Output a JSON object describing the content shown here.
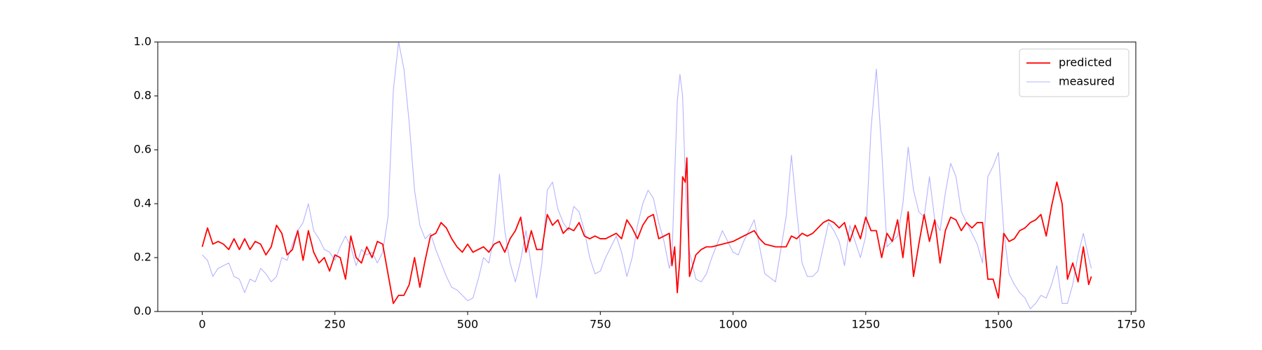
{
  "chart_data": {
    "type": "line",
    "x": [
      0,
      10,
      20,
      30,
      40,
      50,
      60,
      70,
      80,
      90,
      100,
      110,
      120,
      130,
      140,
      150,
      160,
      170,
      180,
      190,
      200,
      210,
      220,
      230,
      240,
      250,
      260,
      270,
      280,
      290,
      300,
      310,
      320,
      330,
      340,
      350,
      360,
      370,
      380,
      390,
      400,
      410,
      420,
      430,
      440,
      450,
      460,
      470,
      480,
      490,
      500,
      510,
      520,
      530,
      540,
      550,
      560,
      570,
      580,
      590,
      600,
      610,
      620,
      630,
      640,
      650,
      660,
      670,
      680,
      690,
      700,
      710,
      720,
      730,
      740,
      750,
      760,
      770,
      780,
      790,
      800,
      810,
      820,
      830,
      840,
      850,
      860,
      870,
      880,
      885,
      890,
      895,
      900,
      905,
      910,
      913,
      918,
      930,
      940,
      950,
      960,
      980,
      1000,
      1010,
      1020,
      1040,
      1050,
      1060,
      1080,
      1100,
      1110,
      1120,
      1130,
      1140,
      1150,
      1160,
      1170,
      1180,
      1190,
      1200,
      1210,
      1220,
      1230,
      1240,
      1250,
      1260,
      1270,
      1280,
      1290,
      1300,
      1310,
      1320,
      1330,
      1340,
      1350,
      1360,
      1370,
      1380,
      1390,
      1400,
      1410,
      1420,
      1430,
      1440,
      1450,
      1460,
      1470,
      1480,
      1490,
      1500,
      1510,
      1520,
      1530,
      1540,
      1550,
      1560,
      1570,
      1580,
      1590,
      1600,
      1610,
      1620,
      1630,
      1640,
      1650,
      1660,
      1670,
      1675
    ],
    "series": [
      {
        "name": "predicted",
        "color": "#ff0000",
        "width": 1.8,
        "values": [
          0.24,
          0.31,
          0.25,
          0.26,
          0.25,
          0.23,
          0.27,
          0.23,
          0.27,
          0.23,
          0.26,
          0.25,
          0.21,
          0.24,
          0.32,
          0.29,
          0.21,
          0.23,
          0.3,
          0.19,
          0.3,
          0.22,
          0.18,
          0.2,
          0.15,
          0.21,
          0.2,
          0.12,
          0.28,
          0.2,
          0.18,
          0.24,
          0.2,
          0.26,
          0.25,
          0.14,
          0.03,
          0.06,
          0.06,
          0.1,
          0.2,
          0.09,
          0.19,
          0.28,
          0.29,
          0.33,
          0.31,
          0.27,
          0.24,
          0.22,
          0.25,
          0.22,
          0.23,
          0.24,
          0.22,
          0.25,
          0.26,
          0.22,
          0.27,
          0.3,
          0.35,
          0.22,
          0.3,
          0.23,
          0.23,
          0.36,
          0.32,
          0.34,
          0.29,
          0.31,
          0.3,
          0.33,
          0.28,
          0.27,
          0.28,
          0.27,
          0.27,
          0.28,
          0.29,
          0.27,
          0.34,
          0.31,
          0.27,
          0.32,
          0.35,
          0.36,
          0.27,
          0.28,
          0.29,
          0.17,
          0.24,
          0.07,
          0.2,
          0.5,
          0.48,
          0.57,
          0.13,
          0.21,
          0.23,
          0.24,
          0.24,
          0.25,
          0.26,
          0.27,
          0.28,
          0.3,
          0.27,
          0.25,
          0.24,
          0.24,
          0.28,
          0.27,
          0.29,
          0.28,
          0.29,
          0.31,
          0.33,
          0.34,
          0.33,
          0.31,
          0.33,
          0.26,
          0.32,
          0.27,
          0.35,
          0.3,
          0.3,
          0.2,
          0.29,
          0.26,
          0.34,
          0.2,
          0.37,
          0.13,
          0.25,
          0.36,
          0.26,
          0.34,
          0.18,
          0.3,
          0.35,
          0.34,
          0.3,
          0.33,
          0.31,
          0.33,
          0.33,
          0.12,
          0.12,
          0.05,
          0.29,
          0.26,
          0.27,
          0.3,
          0.31,
          0.33,
          0.34,
          0.36,
          0.28,
          0.39,
          0.48,
          0.4,
          0.12,
          0.18,
          0.11,
          0.24,
          0.1,
          0.13
        ]
      },
      {
        "name": "measured",
        "color": "#b3b3ff",
        "width": 1.1,
        "values": [
          0.21,
          0.19,
          0.13,
          0.16,
          0.17,
          0.18,
          0.13,
          0.12,
          0.07,
          0.12,
          0.11,
          0.16,
          0.14,
          0.11,
          0.13,
          0.2,
          0.19,
          0.25,
          0.3,
          0.33,
          0.4,
          0.3,
          0.27,
          0.23,
          0.22,
          0.19,
          0.24,
          0.28,
          0.24,
          0.17,
          0.23,
          0.21,
          0.22,
          0.18,
          0.22,
          0.35,
          0.82,
          1.0,
          0.9,
          0.7,
          0.45,
          0.32,
          0.27,
          0.29,
          0.23,
          0.18,
          0.13,
          0.09,
          0.08,
          0.06,
          0.04,
          0.05,
          0.12,
          0.2,
          0.18,
          0.28,
          0.51,
          0.3,
          0.18,
          0.11,
          0.19,
          0.3,
          0.17,
          0.05,
          0.18,
          0.45,
          0.48,
          0.38,
          0.33,
          0.3,
          0.39,
          0.37,
          0.3,
          0.2,
          0.14,
          0.15,
          0.2,
          0.24,
          0.28,
          0.22,
          0.13,
          0.2,
          0.32,
          0.4,
          0.45,
          0.42,
          0.33,
          0.26,
          0.16,
          0.2,
          0.5,
          0.78,
          0.88,
          0.8,
          0.5,
          0.35,
          0.22,
          0.12,
          0.11,
          0.14,
          0.2,
          0.3,
          0.22,
          0.21,
          0.26,
          0.34,
          0.24,
          0.14,
          0.11,
          0.35,
          0.58,
          0.37,
          0.18,
          0.13,
          0.13,
          0.15,
          0.24,
          0.33,
          0.3,
          0.26,
          0.17,
          0.32,
          0.26,
          0.2,
          0.28,
          0.68,
          0.9,
          0.6,
          0.24,
          0.26,
          0.28,
          0.4,
          0.61,
          0.45,
          0.37,
          0.35,
          0.5,
          0.34,
          0.3,
          0.44,
          0.55,
          0.5,
          0.37,
          0.33,
          0.29,
          0.25,
          0.18,
          0.5,
          0.54,
          0.59,
          0.3,
          0.14,
          0.1,
          0.07,
          0.05,
          0.01,
          0.03,
          0.06,
          0.05,
          0.1,
          0.17,
          0.03,
          0.03,
          0.1,
          0.21,
          0.29,
          0.2,
          0.16
        ]
      }
    ],
    "xlim": [
      -83.75,
      1758.75
    ],
    "xticks": [
      0,
      250,
      500,
      750,
      1000,
      1250,
      1500,
      1750
    ],
    "ylim": [
      0,
      1
    ],
    "yticks": [
      {
        "value": 0,
        "label": "0.0"
      },
      0.2,
      0.4,
      0.6,
      0.8,
      {
        "value": 1,
        "label": "1.0"
      }
    ],
    "legend": "upper right"
  }
}
